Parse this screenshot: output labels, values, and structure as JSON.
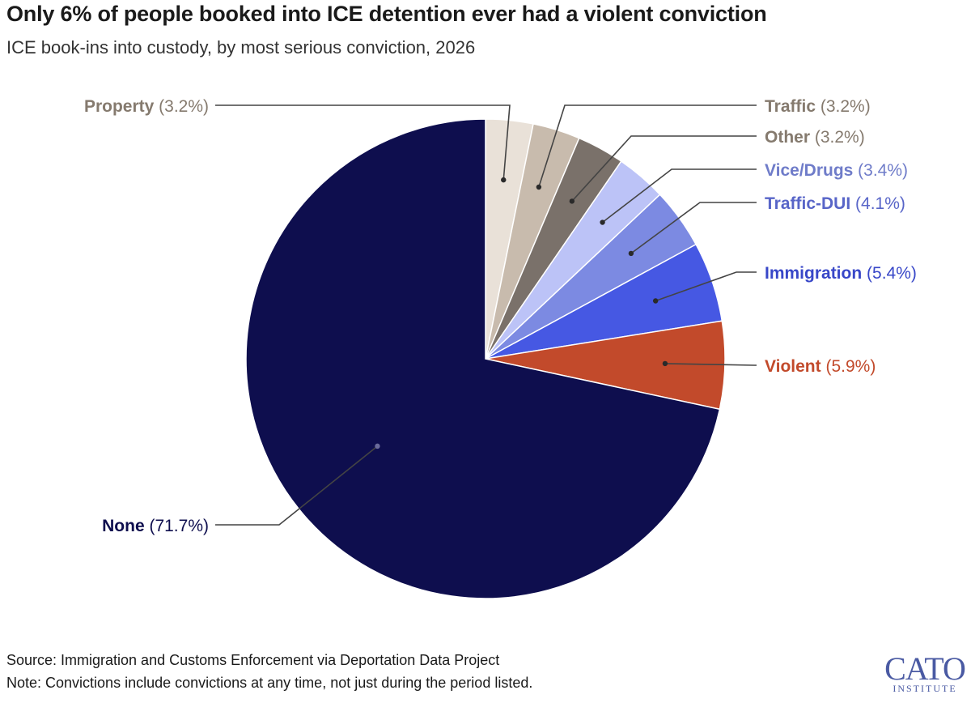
{
  "header": {
    "title": "Only 6% of people booked into ICE detention ever had a violent conviction",
    "subtitle": "ICE book-ins into custody, by most serious conviction, 2026"
  },
  "footer": {
    "source": "Source: Immigration and Customs Enforcement via Deportation Data Project",
    "note": "Note: Convictions include convictions at any time, not just during the period listed."
  },
  "logo": {
    "main": "CATO",
    "sub": "INSTITUTE"
  },
  "chart_data": {
    "type": "pie",
    "start": "12 o'clock",
    "direction": "clockwise",
    "slices": [
      {
        "name": "Property",
        "value": 3.2,
        "pct_label": "(3.2%)",
        "color": "#e9e1d8",
        "label_color": "#857a6e"
      },
      {
        "name": "Traffic",
        "value": 3.2,
        "pct_label": "(3.2%)",
        "color": "#c8bbad",
        "label_color": "#857a6e"
      },
      {
        "name": "Other",
        "value": 3.2,
        "pct_label": "(3.2%)",
        "color": "#7a716a",
        "label_color": "#857a6e"
      },
      {
        "name": "Vice/Drugs",
        "value": 3.4,
        "pct_label": "(3.4%)",
        "color": "#bcc3f7",
        "label_color": "#6f7cc9"
      },
      {
        "name": "Traffic-DUI",
        "value": 4.1,
        "pct_label": "(4.1%)",
        "color": "#7c8ae2",
        "label_color": "#5865c8"
      },
      {
        "name": "Immigration",
        "value": 5.4,
        "pct_label": "(5.4%)",
        "color": "#4658e3",
        "label_color": "#3847c8"
      },
      {
        "name": "Violent",
        "value": 5.9,
        "pct_label": "(5.9%)",
        "color": "#c24a2b",
        "label_color": "#c24a2b"
      },
      {
        "name": "None",
        "value": 71.7,
        "pct_label": "(71.7%)",
        "color": "#0e0e4e",
        "label_color": "#0e0e4e"
      }
    ]
  }
}
